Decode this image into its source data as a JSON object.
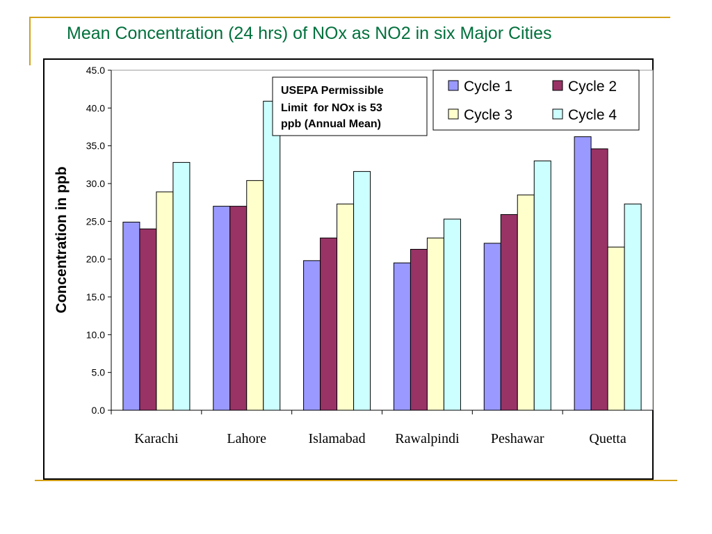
{
  "slide": {
    "title": "Mean Concentration (24 hrs) of NOx as NO2 in six Major Cities"
  },
  "annotation": {
    "lines": [
      "USEPA Permissible",
      "Limit  for NOx is 53",
      "ppb (Annual Mean)"
    ]
  },
  "colors": {
    "accent_line": "#d4a017",
    "title": "#00703c"
  },
  "chart_data": {
    "type": "bar",
    "title": "",
    "xlabel": "",
    "ylabel": "Concentration in ppb",
    "ylim": [
      0,
      45
    ],
    "yticks": [
      "0.0",
      "5.0",
      "10.0",
      "15.0",
      "20.0",
      "25.0",
      "30.0",
      "35.0",
      "40.0",
      "45.0"
    ],
    "grid": false,
    "legend_position": "top-right",
    "categories": [
      "Karachi",
      "Lahore",
      "Islamabad",
      "Rawalpindi",
      "Peshawar",
      "Quetta"
    ],
    "series": [
      {
        "name": "Cycle 1",
        "color": "#9999ff",
        "values": [
          24.9,
          27.0,
          19.8,
          19.5,
          22.1,
          36.2
        ]
      },
      {
        "name": "Cycle 2",
        "color": "#993366",
        "values": [
          24.0,
          27.0,
          22.8,
          21.3,
          25.9,
          34.6
        ]
      },
      {
        "name": "Cycle 3",
        "color": "#ffffcc",
        "values": [
          28.9,
          30.4,
          27.3,
          22.8,
          28.5,
          21.6
        ]
      },
      {
        "name": "Cycle 4",
        "color": "#ccffff",
        "values": [
          32.8,
          40.9,
          31.6,
          25.3,
          33.0,
          27.3
        ]
      }
    ]
  }
}
